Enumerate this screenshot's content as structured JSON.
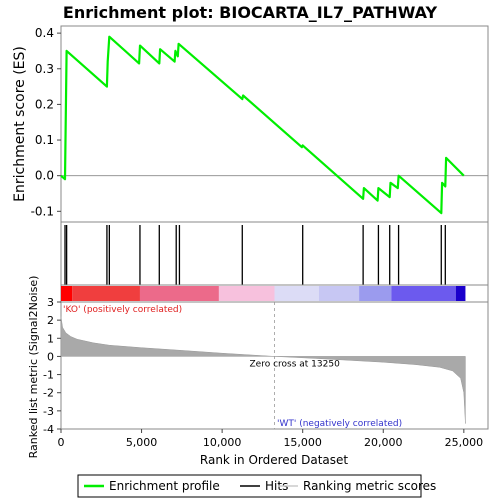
{
  "chart_data": {
    "type": "line",
    "title": "Enrichment plot: BIOCARTA_IL7_PATHWAY",
    "xlabel": "Rank in Ordered Dataset",
    "xlim": [
      0,
      26500
    ],
    "x_ticks": [
      0,
      5000,
      10000,
      15000,
      20000,
      25000
    ],
    "x_tick_labels": [
      "0",
      "5,000",
      "10,000",
      "15,000",
      "20,000",
      "25,000"
    ],
    "es_panel": {
      "ylabel": "Enrichment score (ES)",
      "ylim": [
        -0.13,
        0.42
      ],
      "y_ticks": [
        -0.1,
        0.0,
        0.1,
        0.2,
        0.3,
        0.4
      ],
      "y_tick_labels": [
        "-0.1",
        "0.0",
        "0.1",
        "0.2",
        "0.3",
        "0.4"
      ],
      "zero_line": true,
      "series": [
        {
          "name": "Enrichment profile",
          "color": "#00ee00",
          "x": [
            0,
            250,
            300,
            350,
            2850,
            2900,
            3000,
            4850,
            4900,
            6100,
            6150,
            7050,
            7100,
            7250,
            7300,
            11250,
            11300,
            14950,
            15000,
            18750,
            18800,
            19650,
            19700,
            20400,
            20450,
            20900,
            20950,
            23600,
            23650,
            23850,
            23900,
            25000
          ],
          "y": [
            0.0,
            -0.01,
            0.17,
            0.35,
            0.25,
            0.32,
            0.39,
            0.315,
            0.365,
            0.315,
            0.355,
            0.32,
            0.35,
            0.335,
            0.37,
            0.215,
            0.225,
            0.08,
            0.085,
            -0.065,
            -0.035,
            -0.07,
            -0.035,
            -0.06,
            -0.02,
            -0.035,
            0.0,
            -0.105,
            -0.02,
            -0.03,
            0.05,
            0.0
          ]
        }
      ]
    },
    "hits_panel": {
      "hit_positions": [
        250,
        350,
        2850,
        3000,
        4900,
        6100,
        7150,
        7350,
        11250,
        15000,
        18750,
        19700,
        20400,
        20950,
        23600,
        23850
      ],
      "hit_color": "#000000"
    },
    "ranking_bar": {
      "segments": [
        {
          "from": 0,
          "to": 700,
          "color": "#ff0000"
        },
        {
          "from": 700,
          "to": 4900,
          "color": "#f03e3e"
        },
        {
          "from": 4900,
          "to": 9800,
          "color": "#ec6a8a"
        },
        {
          "from": 9800,
          "to": 13250,
          "color": "#f7c1dd"
        },
        {
          "from": 13250,
          "to": 16000,
          "color": "#dcdcf6"
        },
        {
          "from": 16000,
          "to": 18500,
          "color": "#c7c7f3"
        },
        {
          "from": 18500,
          "to": 20500,
          "color": "#9b9bee"
        },
        {
          "from": 20500,
          "to": 24500,
          "color": "#6c5aee"
        },
        {
          "from": 24500,
          "to": 25100,
          "color": "#1a00cc"
        }
      ]
    },
    "metric_panel": {
      "ylabel": "Ranked list metric (Signal2Noise)",
      "ylim": [
        -4,
        3
      ],
      "y_ticks": [
        -4,
        -3,
        -2,
        -1,
        0,
        1,
        2,
        3
      ],
      "y_tick_labels": [
        "-4",
        "-3",
        "-2",
        "-1",
        "0",
        "1",
        "2",
        "3"
      ],
      "zero_cross_rank": 13250,
      "zero_cross_label": "Zero cross at 13250",
      "positive_label": "'KO' (positively correlated)",
      "negative_label": "'WT' (negatively correlated)",
      "profile_x": [
        0,
        100,
        300,
        600,
        1000,
        2000,
        3000,
        5000,
        7500,
        10000,
        13250,
        16000,
        18000,
        20000,
        22000,
        23500,
        24300,
        24800,
        25000,
        25100
      ],
      "profile_y": [
        2.2,
        1.6,
        1.3,
        1.1,
        0.95,
        0.75,
        0.62,
        0.48,
        0.33,
        0.18,
        0.0,
        -0.12,
        -0.22,
        -0.32,
        -0.45,
        -0.6,
        -0.8,
        -1.2,
        -2.0,
        -3.7
      ]
    },
    "legend": {
      "items": [
        {
          "label": "Enrichment profile",
          "color": "#00ee00",
          "kind": "line"
        },
        {
          "label": "Hits",
          "color": "#000000",
          "kind": "tick"
        },
        {
          "label": "Ranking metric scores",
          "color": "#cccccc",
          "kind": "line"
        }
      ]
    }
  }
}
